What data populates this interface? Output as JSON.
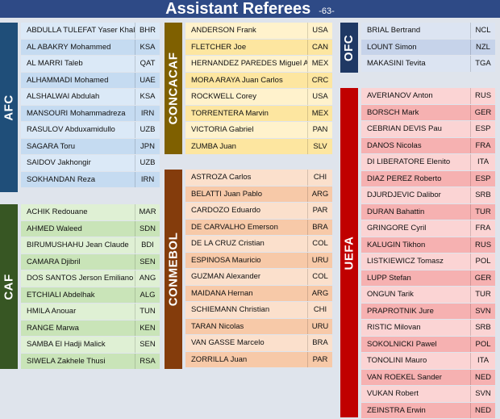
{
  "header": {
    "title": "Assistant Referees",
    "page": "-63-"
  },
  "groups": {
    "afc": {
      "label": "AFC",
      "rows": [
        {
          "name": "ABDULLA TULEFAT Yaser Khalil",
          "country": "BHR"
        },
        {
          "name": "AL ABAKRY   Mohammed",
          "country": "KSA"
        },
        {
          "name": "AL MARRI Taleb",
          "country": "QAT"
        },
        {
          "name": "ALHAMMADI Mohamed",
          "country": "UAE"
        },
        {
          "name": "ALSHALWAI Abdulah",
          "country": "KSA"
        },
        {
          "name": "MANSOURI Mohammadreza",
          "country": "IRN"
        },
        {
          "name": "RASULOV Abduxamidullo",
          "country": "UZB"
        },
        {
          "name": "SAGARA Toru",
          "country": "JPN"
        },
        {
          "name": "SAIDOV Jakhongir",
          "country": "UZB"
        },
        {
          "name": "SOKHANDAN Reza",
          "country": "IRN"
        }
      ]
    },
    "caf": {
      "label": "CAF",
      "rows": [
        {
          "name": "ACHIK Redouane",
          "country": "MAR"
        },
        {
          "name": "AHMED Waleed",
          "country": "SDN"
        },
        {
          "name": "BIRUMUSHAHU Jean Claude",
          "country": "BDI"
        },
        {
          "name": "CAMARA Djibril",
          "country": "SEN"
        },
        {
          "name": "DOS SANTOS Jerson Emiliano",
          "country": "ANG"
        },
        {
          "name": "ETCHIALI Abdelhak",
          "country": "ALG"
        },
        {
          "name": "HMILA Anouar",
          "country": "TUN"
        },
        {
          "name": "RANGE Marwa",
          "country": "KEN"
        },
        {
          "name": "SAMBA El Hadji Malick",
          "country": "SEN"
        },
        {
          "name": "SIWELA Zakhele Thusi",
          "country": "RSA"
        }
      ]
    },
    "concacaf": {
      "label": "CONCACAF",
      "rows": [
        {
          "name": "ANDERSON Frank",
          "country": "USA"
        },
        {
          "name": "FLETCHER Joe",
          "country": "CAN"
        },
        {
          "name": "HERNANDEZ PAREDES Miguel Angel",
          "country": "MEX"
        },
        {
          "name": "MORA ARAYA Juan Carlos",
          "country": "CRC"
        },
        {
          "name": "ROCKWELL Corey",
          "country": "USA"
        },
        {
          "name": "TORRENTERA Marvin",
          "country": "MEX"
        },
        {
          "name": "VICTORIA Gabriel",
          "country": "PAN"
        },
        {
          "name": "ZUMBA Juan",
          "country": "SLV"
        }
      ]
    },
    "conmebol": {
      "label": "CONMEBOL",
      "rows": [
        {
          "name": "ASTROZA Carlos",
          "country": "CHI"
        },
        {
          "name": "BELATTI Juan Pablo",
          "country": "ARG"
        },
        {
          "name": "CARDOZO Eduardo",
          "country": "PAR"
        },
        {
          "name": "DE CARVALHO Emerson",
          "country": "BRA"
        },
        {
          "name": "DE LA CRUZ Cristian",
          "country": "COL"
        },
        {
          "name": "ESPINOSA Mauricio",
          "country": "URU"
        },
        {
          "name": "GUZMAN Alexander",
          "country": "COL"
        },
        {
          "name": "MAIDANA Hernan",
          "country": "ARG"
        },
        {
          "name": "SCHIEMANN Christian",
          "country": "CHI"
        },
        {
          "name": "TARAN Nicolas",
          "country": "URU"
        },
        {
          "name": "VAN GASSE Marcelo",
          "country": "BRA"
        },
        {
          "name": "ZORRILLA Juan",
          "country": "PAR"
        }
      ]
    },
    "ofc": {
      "label": "OFC",
      "rows": [
        {
          "name": "BRIAL Bertrand",
          "country": "NCL"
        },
        {
          "name": "LOUNT Simon",
          "country": "NZL"
        },
        {
          "name": "MAKASINI Tevita",
          "country": "TGA"
        }
      ]
    },
    "uefa": {
      "label": "UEFA",
      "rows": [
        {
          "name": "AVERIANOV Anton",
          "country": "RUS"
        },
        {
          "name": "BORSCH Mark",
          "country": "GER"
        },
        {
          "name": "CEBRIAN DEVIS Pau",
          "country": "ESP"
        },
        {
          "name": "DANOS Nicolas",
          "country": "FRA"
        },
        {
          "name": "DI LIBERATORE Elenito",
          "country": "ITA"
        },
        {
          "name": "DIAZ PEREZ Roberto",
          "country": "ESP"
        },
        {
          "name": "DJURDJEVIC Dalibor",
          "country": "SRB"
        },
        {
          "name": "DURAN Bahattin",
          "country": "TUR"
        },
        {
          "name": "GRINGORE Cyril",
          "country": "FRA"
        },
        {
          "name": "KALUGIN Tikhon",
          "country": "RUS"
        },
        {
          "name": "LISTKIEWICZ Tomasz",
          "country": "POL"
        },
        {
          "name": "LUPP Stefan",
          "country": "GER"
        },
        {
          "name": "ONGUN Tarik",
          "country": "TUR"
        },
        {
          "name": "PRAPROTNIK Jure",
          "country": "SVN"
        },
        {
          "name": "RISTIC Milovan",
          "country": "SRB"
        },
        {
          "name": "SOKOLNICKI Pawel",
          "country": "POL"
        },
        {
          "name": "TONOLINI Mauro",
          "country": "ITA"
        },
        {
          "name": "VAN ROEKEL Sander",
          "country": "NED"
        },
        {
          "name": "VUKAN Robert",
          "country": "SVN"
        },
        {
          "name": "ZEINSTRA Erwin",
          "country": "NED"
        }
      ]
    }
  }
}
